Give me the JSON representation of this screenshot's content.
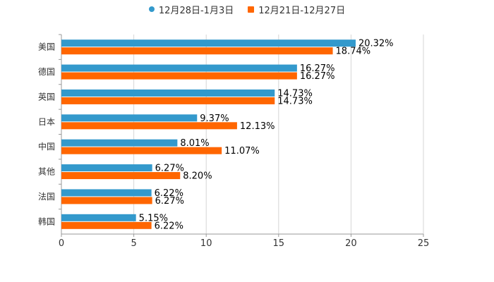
{
  "colors": {
    "series1": "#3399cc",
    "series2": "#ff6600",
    "grid": "#d6d6d6",
    "axis": "#999999",
    "text": "#333333"
  },
  "chart_data": {
    "type": "bar",
    "orientation": "horizontal",
    "title": "",
    "xlabel": "",
    "ylabel": "",
    "xlim": [
      0,
      25
    ],
    "xticks": [
      0,
      5,
      10,
      15,
      20,
      25
    ],
    "grid": true,
    "legend_position": "top-center",
    "categories": [
      "美国",
      "德国",
      "英国",
      "日本",
      "中国",
      "其他",
      "法国",
      "韩国"
    ],
    "series": [
      {
        "name": "12月28日-1月3日",
        "values": [
          20.32,
          16.27,
          14.73,
          9.37,
          8.01,
          6.27,
          6.22,
          5.15
        ],
        "labels": [
          "20.32%",
          "16.27%",
          "14.73%",
          "9.37%",
          "8.01%",
          "6.27%",
          "6.22%",
          "5.15%"
        ]
      },
      {
        "name": "12月21日-12月27日",
        "values": [
          18.74,
          16.27,
          14.73,
          12.13,
          11.07,
          8.2,
          6.27,
          6.22
        ],
        "labels": [
          "18.74%",
          "16.27%",
          "14.73%",
          "12.13%",
          "11.07%",
          "8.20%",
          "6.27%",
          "6.22%"
        ]
      }
    ]
  }
}
